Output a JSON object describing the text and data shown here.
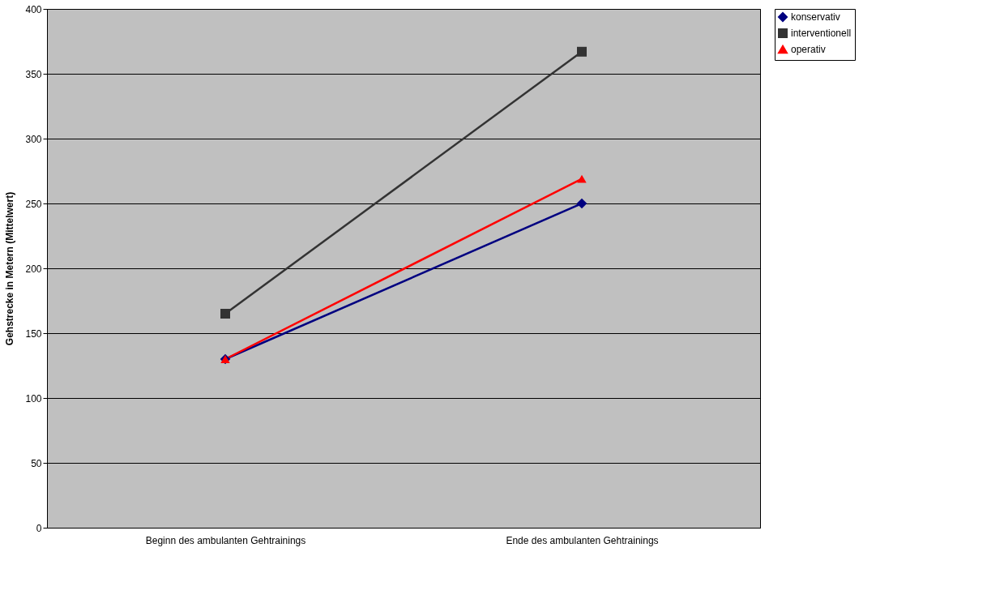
{
  "chart_data": {
    "type": "line",
    "ylabel": "Gehstrecke in Metern (Mittelwert)",
    "categories": [
      "Beginn des ambulanten Gehtrainings",
      "Ende des ambulanten Gehtrainings"
    ],
    "series": [
      {
        "name": "konservativ",
        "color": "#000080",
        "values": [
          130,
          250
        ],
        "marker": "diamond"
      },
      {
        "name": "interventionell",
        "color": "#333333",
        "values": [
          165,
          367
        ],
        "marker": "square"
      },
      {
        "name": "operativ",
        "color": "#ff0000",
        "values": [
          130,
          269
        ],
        "marker": "triangle"
      }
    ],
    "ylim": [
      0,
      400
    ],
    "yticks": [
      0,
      50,
      100,
      150,
      200,
      250,
      300,
      350,
      400
    ],
    "grid": "y",
    "legend": "right",
    "line_style": "solid"
  }
}
